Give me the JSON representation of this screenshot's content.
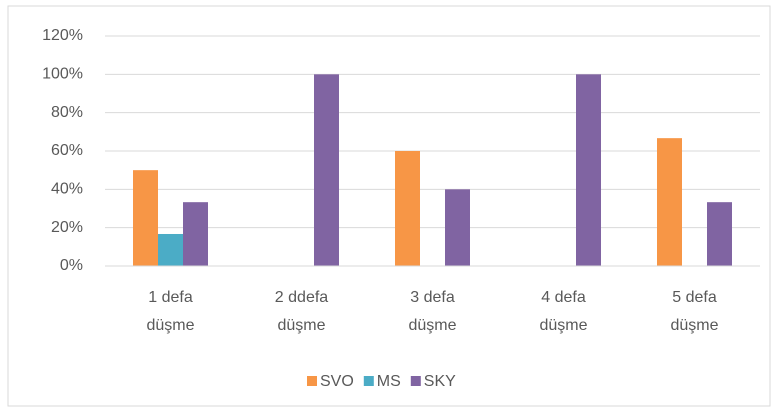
{
  "chart_data": {
    "type": "bar",
    "categories": [
      "1  defa\ndüşme",
      "2 ddefa\ndüşme",
      "3 defa\ndüşme",
      "4 defa\ndüşme",
      "5 defa\ndüşme"
    ],
    "series": [
      {
        "name": "SVO",
        "color": "#f79646",
        "values": [
          50,
          0,
          60,
          0,
          66.7
        ]
      },
      {
        "name": "MS",
        "color": "#4bacc6",
        "values": [
          16.7,
          0,
          0,
          0,
          0
        ]
      },
      {
        "name": "SKY",
        "color": "#8064a2",
        "values": [
          33.3,
          100,
          40,
          100,
          33.3
        ]
      }
    ],
    "ylim": [
      0,
      120
    ],
    "yticks": [
      {
        "value": 0,
        "label": "0%"
      },
      {
        "value": 20,
        "label": "20%"
      },
      {
        "value": 40,
        "label": "40%"
      },
      {
        "value": 60,
        "label": "60%"
      },
      {
        "value": 80,
        "label": "80%"
      },
      {
        "value": 100,
        "label": "100%"
      },
      {
        "value": 120,
        "label": "120%"
      }
    ],
    "grid": true,
    "legend": "bottom"
  }
}
